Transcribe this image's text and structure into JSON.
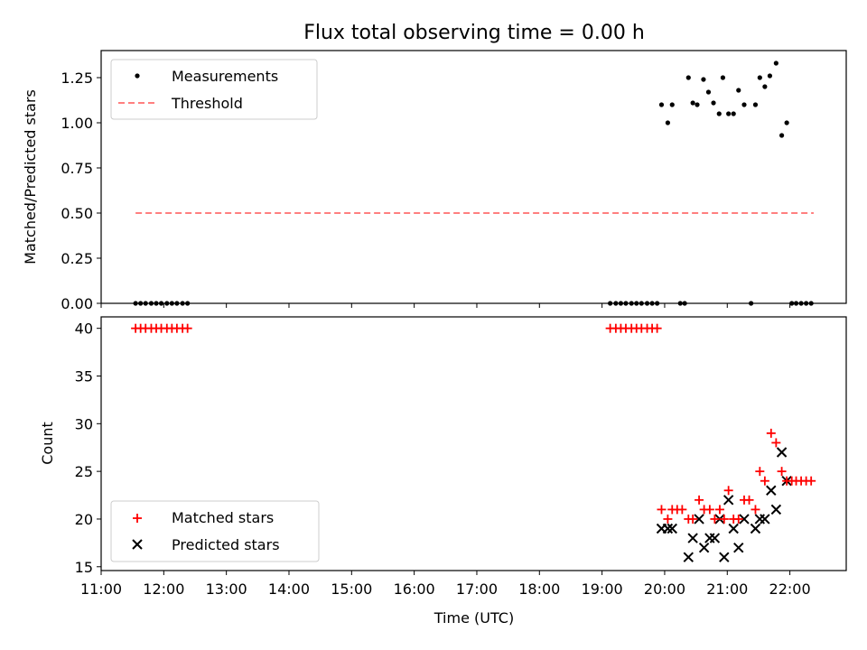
{
  "chart_data": [
    {
      "type": "scatter",
      "title": "Flux total observing time = 0.00 h",
      "xlabel": "",
      "ylabel": "Matched/Predicted stars",
      "xlim_hours": [
        11.0,
        22.9
      ],
      "ylim": [
        0,
        1.4
      ],
      "y_ticks": [
        "0.00",
        "0.25",
        "0.50",
        "0.75",
        "1.00",
        "1.25"
      ],
      "y_tick_values": [
        0,
        0.25,
        0.5,
        0.75,
        1.0,
        1.25
      ],
      "legend": {
        "location": "upper-left",
        "entries": [
          {
            "label": "Measurements",
            "marker": "dot",
            "color": "#000000"
          },
          {
            "label": "Threshold",
            "marker": "dashed-line",
            "color": "#ff7f7f"
          }
        ]
      },
      "series": [
        {
          "name": "Measurements",
          "color": "#000000",
          "points": [
            [
              11.55,
              0
            ],
            [
              11.63,
              0
            ],
            [
              11.71,
              0
            ],
            [
              11.8,
              0
            ],
            [
              11.88,
              0
            ],
            [
              11.96,
              0
            ],
            [
              12.05,
              0
            ],
            [
              12.13,
              0
            ],
            [
              12.21,
              0
            ],
            [
              12.3,
              0
            ],
            [
              12.38,
              0
            ],
            [
              19.13,
              0
            ],
            [
              19.22,
              0
            ],
            [
              19.3,
              0
            ],
            [
              19.38,
              0
            ],
            [
              19.47,
              0
            ],
            [
              19.55,
              0
            ],
            [
              19.63,
              0
            ],
            [
              19.72,
              0
            ],
            [
              19.8,
              0
            ],
            [
              19.88,
              0
            ],
            [
              19.95,
              1.1
            ],
            [
              20.05,
              1.0
            ],
            [
              20.12,
              1.1
            ],
            [
              20.25,
              0
            ],
            [
              20.32,
              0
            ],
            [
              20.38,
              1.25
            ],
            [
              20.45,
              1.11
            ],
            [
              20.52,
              1.1
            ],
            [
              20.62,
              1.24
            ],
            [
              20.7,
              1.17
            ],
            [
              20.78,
              1.11
            ],
            [
              20.87,
              1.05
            ],
            [
              20.93,
              1.25
            ],
            [
              21.02,
              1.05
            ],
            [
              21.1,
              1.05
            ],
            [
              21.18,
              1.18
            ],
            [
              21.27,
              1.1
            ],
            [
              21.38,
              0
            ],
            [
              21.45,
              1.1
            ],
            [
              21.52,
              1.25
            ],
            [
              21.6,
              1.2
            ],
            [
              21.68,
              1.26
            ],
            [
              21.78,
              1.33
            ],
            [
              21.87,
              0.93
            ],
            [
              21.95,
              1.0
            ],
            [
              22.03,
              0
            ],
            [
              22.1,
              0
            ],
            [
              22.18,
              0
            ],
            [
              22.26,
              0
            ],
            [
              22.34,
              0
            ]
          ]
        },
        {
          "name": "Threshold",
          "color": "#ff7f7f",
          "line": [
            [
              11.55,
              0.5
            ],
            [
              22.38,
              0.5
            ]
          ]
        }
      ]
    },
    {
      "type": "scatter",
      "title": "",
      "xlabel": "Time (UTC)",
      "ylabel": "Count",
      "xlim_hours": [
        11.0,
        22.9
      ],
      "ylim": [
        14.6,
        41.2
      ],
      "y_ticks": [
        "15",
        "20",
        "25",
        "30",
        "35",
        "40"
      ],
      "y_tick_values": [
        15,
        20,
        25,
        30,
        35,
        40
      ],
      "x_ticks": [
        "11:00",
        "12:00",
        "13:00",
        "14:00",
        "15:00",
        "16:00",
        "17:00",
        "18:00",
        "19:00",
        "20:00",
        "21:00",
        "22:00"
      ],
      "x_tick_values": [
        11,
        12,
        13,
        14,
        15,
        16,
        17,
        18,
        19,
        20,
        21,
        22
      ],
      "legend": {
        "location": "lower-left",
        "entries": [
          {
            "label": "Matched stars",
            "marker": "plus",
            "color": "#ff0000"
          },
          {
            "label": "Predicted stars",
            "marker": "x",
            "color": "#000000"
          }
        ]
      },
      "series": [
        {
          "name": "Matched stars",
          "color": "#ff0000",
          "points": [
            [
              11.55,
              40
            ],
            [
              11.63,
              40
            ],
            [
              11.71,
              40
            ],
            [
              11.8,
              40
            ],
            [
              11.88,
              40
            ],
            [
              11.96,
              40
            ],
            [
              12.05,
              40
            ],
            [
              12.13,
              40
            ],
            [
              12.21,
              40
            ],
            [
              12.3,
              40
            ],
            [
              12.38,
              40
            ],
            [
              19.13,
              40
            ],
            [
              19.22,
              40
            ],
            [
              19.3,
              40
            ],
            [
              19.38,
              40
            ],
            [
              19.47,
              40
            ],
            [
              19.55,
              40
            ],
            [
              19.63,
              40
            ],
            [
              19.72,
              40
            ],
            [
              19.8,
              40
            ],
            [
              19.88,
              40
            ],
            [
              19.95,
              21
            ],
            [
              20.05,
              20
            ],
            [
              20.12,
              21
            ],
            [
              20.2,
              21
            ],
            [
              20.28,
              21
            ],
            [
              20.38,
              20
            ],
            [
              20.45,
              20
            ],
            [
              20.55,
              22
            ],
            [
              20.63,
              21
            ],
            [
              20.72,
              21
            ],
            [
              20.8,
              20
            ],
            [
              20.88,
              21
            ],
            [
              20.95,
              20
            ],
            [
              21.02,
              23
            ],
            [
              21.1,
              20
            ],
            [
              21.18,
              20
            ],
            [
              21.27,
              22
            ],
            [
              21.35,
              22
            ],
            [
              21.45,
              21
            ],
            [
              21.52,
              25
            ],
            [
              21.6,
              24
            ],
            [
              21.7,
              29
            ],
            [
              21.78,
              28
            ],
            [
              21.87,
              25
            ],
            [
              21.95,
              24
            ],
            [
              22.03,
              24
            ],
            [
              22.1,
              24
            ],
            [
              22.18,
              24
            ],
            [
              22.26,
              24
            ],
            [
              22.34,
              24
            ]
          ]
        },
        {
          "name": "Predicted stars",
          "color": "#000000",
          "points": [
            [
              19.95,
              19
            ],
            [
              20.05,
              19
            ],
            [
              20.12,
              19
            ],
            [
              20.38,
              16
            ],
            [
              20.45,
              18
            ],
            [
              20.55,
              20
            ],
            [
              20.63,
              17
            ],
            [
              20.72,
              18
            ],
            [
              20.8,
              18
            ],
            [
              20.88,
              20
            ],
            [
              20.95,
              16
            ],
            [
              21.02,
              22
            ],
            [
              21.1,
              19
            ],
            [
              21.18,
              17
            ],
            [
              21.27,
              20
            ],
            [
              21.45,
              19
            ],
            [
              21.52,
              20
            ],
            [
              21.6,
              20
            ],
            [
              21.7,
              23
            ],
            [
              21.78,
              21
            ],
            [
              21.87,
              27
            ],
            [
              21.95,
              24
            ]
          ]
        }
      ]
    }
  ]
}
